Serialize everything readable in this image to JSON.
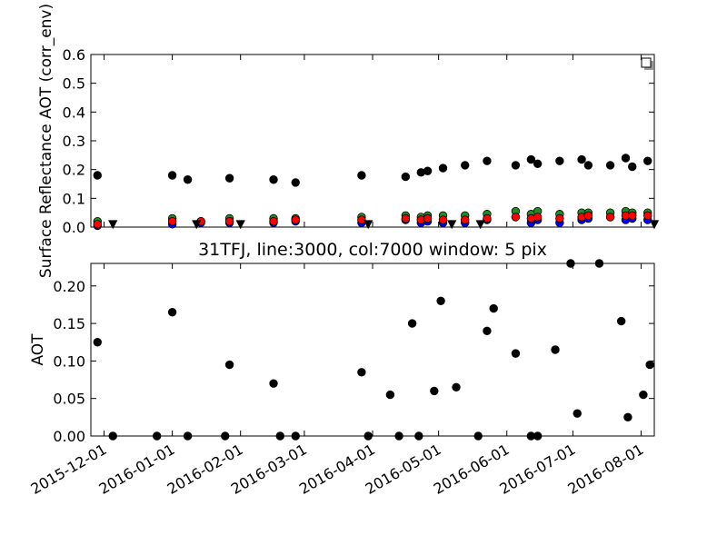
{
  "chart_data": [
    {
      "type": "scatter",
      "title": "",
      "xlabel": "",
      "ylabel": "Surface Reflectance AOT (corr_env)",
      "ylim": [
        0.0,
        0.6
      ],
      "yticks": [
        "0.0",
        "0.1",
        "0.2",
        "0.3",
        "0.4",
        "0.5",
        "0.6"
      ],
      "xlim": [
        "2015-11-25",
        "2016-08-07"
      ],
      "legend": "top-right",
      "grid": false,
      "series": [
        {
          "color": "#000000",
          "marker": "circle",
          "x": [
            "2015-11-28",
            "2016-01-01",
            "2016-01-08",
            "2016-01-27",
            "2016-02-16",
            "2016-02-26",
            "2016-03-27",
            "2016-04-16",
            "2016-04-23",
            "2016-04-26",
            "2016-05-03",
            "2016-05-13",
            "2016-05-23",
            "2016-06-05",
            "2016-06-12",
            "2016-06-15",
            "2016-06-25",
            "2016-07-05",
            "2016-07-08",
            "2016-07-18",
            "2016-07-25",
            "2016-07-28",
            "2016-08-04"
          ],
          "y": [
            0.18,
            0.18,
            0.165,
            0.17,
            0.165,
            0.155,
            0.18,
            0.175,
            0.19,
            0.195,
            0.205,
            0.215,
            0.23,
            0.215,
            0.235,
            0.22,
            0.23,
            0.235,
            0.215,
            0.215,
            0.24,
            0.21,
            0.23
          ]
        },
        {
          "color": "#228B22",
          "marker": "circle",
          "x": [
            "2015-11-28",
            "2016-01-01",
            "2016-01-14",
            "2016-01-27",
            "2016-02-16",
            "2016-02-26",
            "2016-03-27",
            "2016-04-16",
            "2016-04-23",
            "2016-04-26",
            "2016-05-03",
            "2016-05-13",
            "2016-05-23",
            "2016-06-05",
            "2016-06-12",
            "2016-06-15",
            "2016-06-25",
            "2016-07-05",
            "2016-07-08",
            "2016-07-18",
            "2016-07-25",
            "2016-07-28",
            "2016-08-04"
          ],
          "y": [
            0.02,
            0.03,
            0.02,
            0.03,
            0.03,
            0.03,
            0.035,
            0.04,
            0.035,
            0.04,
            0.04,
            0.04,
            0.045,
            0.055,
            0.045,
            0.055,
            0.045,
            0.05,
            0.05,
            0.05,
            0.055,
            0.05,
            0.05
          ]
        },
        {
          "color": "#0000FF",
          "marker": "circle",
          "x": [
            "2015-11-28",
            "2016-01-01",
            "2016-01-14",
            "2016-01-27",
            "2016-02-16",
            "2016-02-26",
            "2016-03-27",
            "2016-04-16",
            "2016-04-23",
            "2016-04-26",
            "2016-05-03",
            "2016-05-13",
            "2016-05-23",
            "2016-06-05",
            "2016-06-12",
            "2016-06-15",
            "2016-06-25",
            "2016-07-05",
            "2016-07-08",
            "2016-07-18",
            "2016-07-25",
            "2016-07-28",
            "2016-08-04"
          ],
          "y": [
            0.005,
            0.01,
            0.015,
            0.015,
            0.015,
            0.02,
            0.015,
            0.025,
            0.015,
            0.02,
            0.015,
            0.015,
            0.025,
            0.035,
            0.015,
            0.025,
            0.015,
            0.025,
            0.03,
            0.035,
            0.025,
            0.03,
            0.025
          ]
        },
        {
          "color": "#FF0000",
          "marker": "circle",
          "x": [
            "2015-11-28",
            "2016-01-01",
            "2016-01-14",
            "2016-01-27",
            "2016-02-16",
            "2016-02-26",
            "2016-03-27",
            "2016-04-16",
            "2016-04-23",
            "2016-04-26",
            "2016-05-03",
            "2016-05-13",
            "2016-05-23",
            "2016-06-05",
            "2016-06-12",
            "2016-06-15",
            "2016-06-25",
            "2016-07-05",
            "2016-07-08",
            "2016-07-18",
            "2016-07-25",
            "2016-07-28",
            "2016-08-04"
          ],
          "y": [
            0.01,
            0.02,
            0.02,
            0.02,
            0.02,
            0.025,
            0.025,
            0.03,
            0.025,
            0.03,
            0.025,
            0.025,
            0.03,
            0.035,
            0.03,
            0.035,
            0.03,
            0.035,
            0.04,
            0.035,
            0.04,
            0.04,
            0.04
          ]
        },
        {
          "color": "#000000",
          "marker": "triangle-down",
          "x": [
            "2015-12-05",
            "2016-01-12",
            "2016-02-01",
            "2016-03-30",
            "2016-05-07",
            "2016-05-20",
            "2016-08-07"
          ],
          "y": [
            0.01,
            0.01,
            0.01,
            0.01,
            0.01,
            0.01,
            0.01
          ]
        }
      ]
    },
    {
      "type": "scatter",
      "title": "31TFJ, line:3000, col:7000 window: 5 pix",
      "xlabel": "",
      "ylabel": "AOT",
      "ylim": [
        0.0,
        0.23
      ],
      "yticks": [
        "0.00",
        "0.05",
        "0.10",
        "0.15",
        "0.20"
      ],
      "xlim": [
        "2015-11-25",
        "2016-08-07"
      ],
      "xticks": [
        "2015-12-01",
        "2016-01-01",
        "2016-02-01",
        "2016-03-01",
        "2016-04-01",
        "2016-05-01",
        "2016-06-01",
        "2016-07-01",
        "2016-08-01"
      ],
      "grid": false,
      "series": [
        {
          "color": "#000000",
          "marker": "circle",
          "x": [
            "2015-11-28",
            "2015-12-05",
            "2015-12-25",
            "2016-01-01",
            "2016-01-08",
            "2016-01-25",
            "2016-01-27",
            "2016-02-16",
            "2016-02-19",
            "2016-02-26",
            "2016-03-27",
            "2016-03-30",
            "2016-04-09",
            "2016-04-13",
            "2016-04-19",
            "2016-04-22",
            "2016-04-29",
            "2016-05-02",
            "2016-05-09",
            "2016-05-19",
            "2016-05-23",
            "2016-05-26",
            "2016-06-05",
            "2016-06-12",
            "2016-06-15",
            "2016-06-23",
            "2016-06-30",
            "2016-07-03",
            "2016-07-13",
            "2016-07-23",
            "2016-07-26",
            "2016-08-02",
            "2016-08-05"
          ],
          "y": [
            0.125,
            0.0,
            0.0,
            0.165,
            0.0,
            0.0,
            0.095,
            0.07,
            0.0,
            0.0,
            0.085,
            0.0,
            0.055,
            0.0,
            0.15,
            0.0,
            0.06,
            0.18,
            0.065,
            0.0,
            0.14,
            0.17,
            0.11,
            0.0,
            0.0,
            0.115,
            0.23,
            0.03,
            0.23,
            0.153,
            0.025,
            0.055,
            0.095
          ]
        }
      ]
    }
  ]
}
